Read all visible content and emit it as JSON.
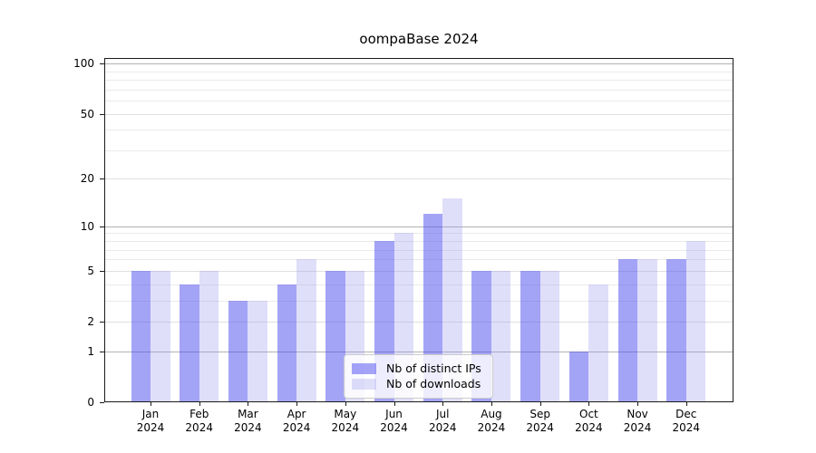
{
  "chart_data": {
    "type": "bar",
    "title": "oompaBase 2024",
    "categories": [
      "Jan",
      "Feb",
      "Mar",
      "Apr",
      "May",
      "Jun",
      "Jul",
      "Aug",
      "Sep",
      "Oct",
      "Nov",
      "Dec"
    ],
    "category_year": "2024",
    "series": [
      {
        "name": "Nb of distinct IPs",
        "color": "rgba(80,80,240,0.52)",
        "values": [
          5,
          4,
          3,
          4,
          5,
          8,
          12,
          5,
          5,
          1,
          6,
          6
        ]
      },
      {
        "name": "Nb of downloads",
        "color": "rgba(150,150,240,0.30)",
        "values": [
          5,
          5,
          3,
          6,
          5,
          9,
          15,
          5,
          5,
          4,
          6,
          8
        ]
      }
    ],
    "yscale": "log1p",
    "ylim": [
      0,
      108
    ],
    "yticks": [
      0,
      1,
      2,
      5,
      10,
      20,
      50,
      100
    ],
    "grid": {
      "major": [
        1,
        10,
        100
      ],
      "labeled": [
        2,
        5,
        20,
        50
      ],
      "minor": [
        3,
        4,
        6,
        7,
        8,
        9,
        30,
        40,
        60,
        70,
        80,
        90
      ]
    },
    "legend_position": "lower center",
    "colors": {
      "grid_major": "#b2b2b2",
      "grid_labeled": "#e0e0e0",
      "grid_minor": "#eaeaea",
      "axis": "#1a1a1a",
      "background": "#ffffff"
    }
  }
}
